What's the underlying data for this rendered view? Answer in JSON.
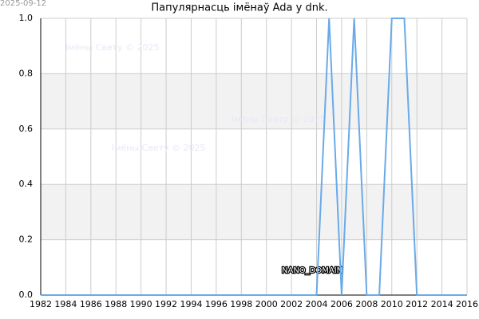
{
  "chart_data": {
    "type": "line",
    "title": "Папулярнасць імёнаў Ada у dnk.",
    "date": "2025-09-12",
    "watermarks": [
      "Імёны Свету © 2025",
      "Імёны Свету © 2025",
      "Імёны Свету © 2025"
    ],
    "annotation": "NANO_DOMAIN",
    "x": [
      1982,
      1983,
      1984,
      1985,
      1986,
      1987,
      1988,
      1989,
      1990,
      1991,
      1992,
      1993,
      1994,
      1995,
      1996,
      1997,
      1998,
      1999,
      2000,
      2001,
      2002,
      2003,
      2004,
      2005,
      2006,
      2007,
      2008,
      2009,
      2010,
      2011,
      2012,
      2013,
      2014,
      2015,
      2016
    ],
    "series": [
      {
        "name": "Ada",
        "color": "#6aaae8",
        "values": [
          0,
          0,
          0,
          0,
          0,
          0,
          0,
          0,
          0,
          0,
          0,
          0,
          0,
          0,
          0,
          0,
          0,
          0,
          0,
          0,
          0,
          0,
          0,
          1,
          0,
          1,
          0,
          0,
          1,
          1,
          0,
          0,
          0,
          0,
          0
        ]
      }
    ],
    "xlim": [
      1982,
      2016
    ],
    "xticks": [
      1982,
      1984,
      1986,
      1988,
      1990,
      1992,
      1994,
      1996,
      1998,
      2000,
      2002,
      2004,
      2006,
      2008,
      2010,
      2012,
      2014,
      2016
    ],
    "ylim": [
      0,
      1
    ],
    "yticks": [
      {
        "value": 0,
        "label": "0.0"
      },
      0.2,
      0.4,
      0.6,
      0.8,
      {
        "value": 1,
        "label": "1.0"
      }
    ],
    "grid": true
  }
}
